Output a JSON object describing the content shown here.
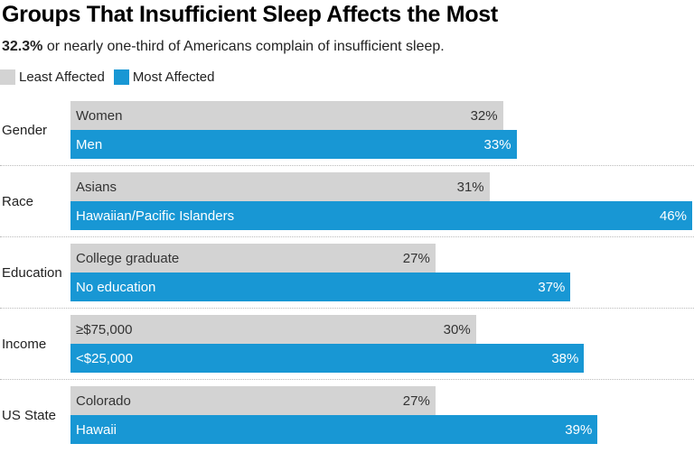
{
  "chart_data": {
    "type": "bar",
    "title": "Groups That Insufficient Sleep Affects the Most",
    "subtitle_bold": "32.3%",
    "subtitle_rest": " or nearly one-third of Americans complain of insufficient sleep.",
    "legend": [
      {
        "name": "Least Affected",
        "color": "#d3d3d3"
      },
      {
        "name": "Most Affected",
        "color": "#1897d4"
      }
    ],
    "legend_placement": "top-left",
    "xlim": [
      0,
      46
    ],
    "grid": false,
    "groups": [
      {
        "category": "Gender",
        "least": {
          "label": "Women",
          "value": 32,
          "text": "32%"
        },
        "most": {
          "label": "Men",
          "value": 33,
          "text": "33%"
        }
      },
      {
        "category": "Race",
        "least": {
          "label": "Asians",
          "value": 31,
          "text": "31%"
        },
        "most": {
          "label": "Hawaiian/Pacific Islanders",
          "value": 46,
          "text": "46%"
        }
      },
      {
        "category": "Education",
        "least": {
          "label": "College graduate",
          "value": 27,
          "text": "27%"
        },
        "most": {
          "label": "No education",
          "value": 37,
          "text": "37%"
        }
      },
      {
        "category": "Income",
        "least": {
          "label": "≥$75,000",
          "value": 30,
          "text": "30%"
        },
        "most": {
          "label": "<$25,000",
          "value": 38,
          "text": "38%"
        }
      },
      {
        "category": "US State",
        "least": {
          "label": "Colorado",
          "value": 27,
          "text": "27%"
        },
        "most": {
          "label": "Hawaii",
          "value": 39,
          "text": "39%"
        }
      }
    ]
  }
}
